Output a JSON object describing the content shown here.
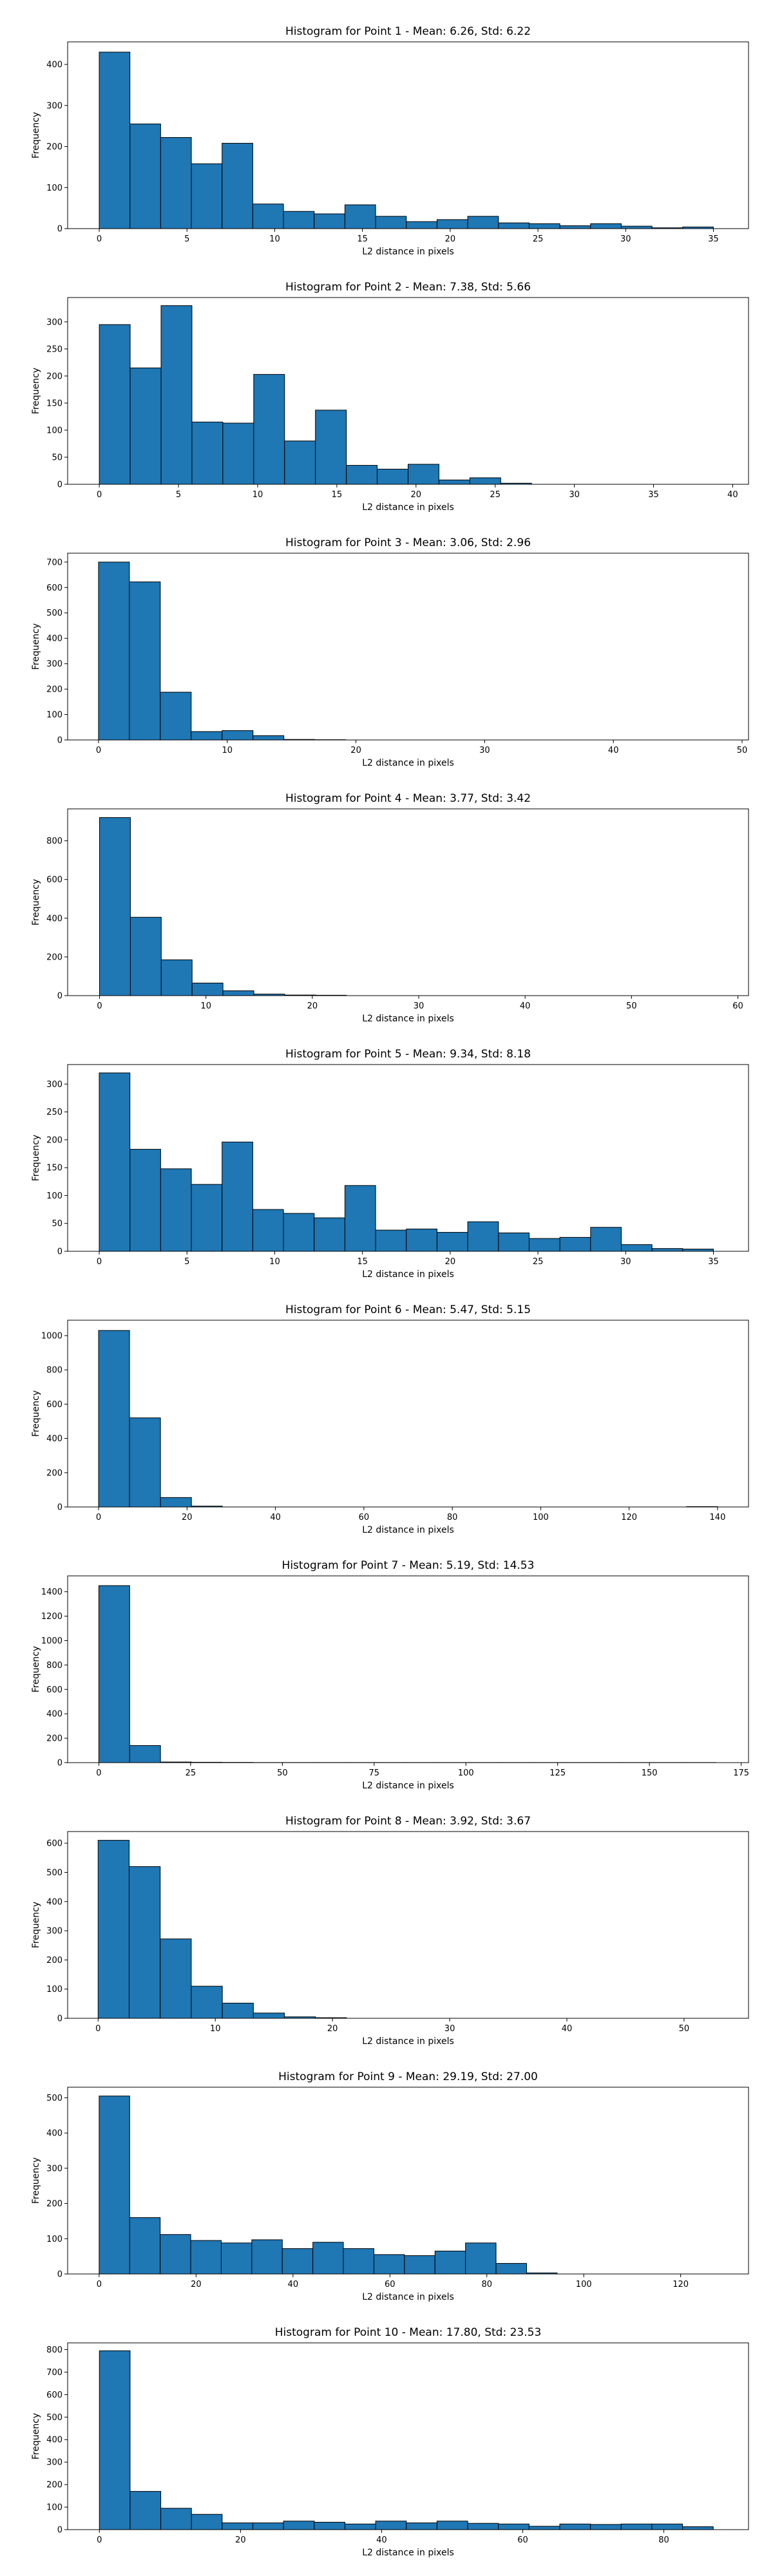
{
  "chart_data": [
    {
      "type": "bar",
      "title": "Histogram for Point 1 - Mean: 6.26, Std: 6.22",
      "xlabel": "L2 distance in pixels",
      "ylabel": "Frequency",
      "xlim": [
        -1.8,
        37.0
      ],
      "ylim": [
        0,
        455
      ],
      "xticks": [
        0,
        5,
        10,
        15,
        20,
        25,
        30,
        35
      ],
      "yticks": [
        0,
        100,
        200,
        300,
        400
      ],
      "bin_start": 0.0,
      "bin_width": 1.75,
      "values": [
        430,
        255,
        222,
        158,
        208,
        60,
        42,
        36,
        58,
        30,
        17,
        22,
        30,
        14,
        12,
        7,
        12,
        6,
        2,
        4
      ],
      "color": "#1f77b4"
    },
    {
      "type": "bar",
      "title": "Histogram for Point 2 - Mean: 7.38, Std: 5.66",
      "xlabel": "L2 distance in pixels",
      "ylabel": "Frequency",
      "xlim": [
        -2.0,
        41.0
      ],
      "ylim": [
        0,
        345
      ],
      "xticks": [
        0,
        5,
        10,
        15,
        20,
        25,
        30,
        35,
        40
      ],
      "yticks": [
        0,
        50,
        100,
        150,
        200,
        250,
        300
      ],
      "bin_start": 0.0,
      "bin_width": 1.95,
      "values": [
        295,
        215,
        330,
        115,
        113,
        203,
        80,
        137,
        35,
        28,
        37,
        8,
        12,
        2,
        0,
        0,
        0,
        0,
        0,
        0
      ],
      "color": "#1f77b4"
    },
    {
      "type": "bar",
      "title": "Histogram for Point 3 - Mean: 3.06, Std: 2.96",
      "xlabel": "L2 distance in pixels",
      "ylabel": "Frequency",
      "xlim": [
        -2.4,
        50.5
      ],
      "ylim": [
        0,
        735
      ],
      "xticks": [
        0,
        10,
        20,
        30,
        40,
        50
      ],
      "yticks": [
        0,
        100,
        200,
        300,
        400,
        500,
        600,
        700
      ],
      "bin_start": 0.0,
      "bin_width": 2.4,
      "values": [
        700,
        622,
        188,
        33,
        37,
        17,
        2,
        1,
        0,
        0,
        0,
        0,
        0,
        0,
        0,
        0,
        0,
        0,
        0,
        0
      ],
      "color": "#1f77b4"
    },
    {
      "type": "bar",
      "title": "Histogram for Point 4 - Mean: 3.77, Std: 3.42",
      "xlabel": "L2 distance in pixels",
      "ylabel": "Frequency",
      "xlim": [
        -3.0,
        61.0
      ],
      "ylim": [
        0,
        965
      ],
      "xticks": [
        0,
        10,
        20,
        30,
        40,
        50,
        60
      ],
      "yticks": [
        0,
        200,
        400,
        600,
        800
      ],
      "bin_start": 0.0,
      "bin_width": 2.9,
      "values": [
        920,
        405,
        185,
        65,
        25,
        8,
        3,
        2,
        0,
        0,
        0,
        0,
        0,
        0,
        0,
        0,
        0,
        0,
        0,
        0
      ],
      "color": "#1f77b4"
    },
    {
      "type": "bar",
      "title": "Histogram for Point 5 - Mean: 9.34, Std: 8.18",
      "xlabel": "L2 distance in pixels",
      "ylabel": "Frequency",
      "xlim": [
        -1.8,
        37.0
      ],
      "ylim": [
        0,
        335
      ],
      "xticks": [
        0,
        5,
        10,
        15,
        20,
        25,
        30,
        35
      ],
      "yticks": [
        0,
        50,
        100,
        150,
        200,
        250,
        300
      ],
      "bin_start": 0.0,
      "bin_width": 1.75,
      "values": [
        320,
        183,
        148,
        120,
        196,
        75,
        68,
        60,
        118,
        38,
        40,
        34,
        53,
        33,
        23,
        25,
        43,
        12,
        5,
        4
      ],
      "color": "#1f77b4"
    },
    {
      "type": "bar",
      "title": "Histogram for Point 6 - Mean: 5.47, Std: 5.15",
      "xlabel": "L2 distance in pixels",
      "ylabel": "Frequency",
      "xlim": [
        -7.0,
        147.0
      ],
      "ylim": [
        0,
        1090
      ],
      "xticks": [
        0,
        20,
        40,
        60,
        80,
        100,
        120,
        140
      ],
      "yticks": [
        0,
        200,
        400,
        600,
        800,
        1000
      ],
      "bin_start": 0.0,
      "bin_width": 7.0,
      "values": [
        1030,
        520,
        55,
        5,
        0,
        0,
        0,
        0,
        0,
        0,
        0,
        0,
        0,
        0,
        0,
        0,
        0,
        0,
        0,
        2
      ],
      "color": "#1f77b4"
    },
    {
      "type": "bar",
      "title": "Histogram for Point 7 - Mean: 5.19, Std: 14.53",
      "xlabel": "L2 distance in pixels",
      "ylabel": "Frequency",
      "xlim": [
        -8.5,
        177.0
      ],
      "ylim": [
        0,
        1530
      ],
      "xticks": [
        0,
        25,
        50,
        75,
        100,
        125,
        150,
        175
      ],
      "yticks": [
        0,
        200,
        400,
        600,
        800,
        1000,
        1200,
        1400
      ],
      "bin_start": 0.0,
      "bin_width": 8.4,
      "values": [
        1450,
        140,
        5,
        3,
        2,
        1,
        1,
        1,
        1,
        1,
        1,
        1,
        1,
        1,
        1,
        1,
        1,
        1,
        1,
        1
      ],
      "color": "#1f77b4"
    },
    {
      "type": "bar",
      "title": "Histogram for Point 8 - Mean: 3.92, Std: 3.67",
      "xlabel": "L2 distance in pixels",
      "ylabel": "Frequency",
      "xlim": [
        -2.6,
        55.5
      ],
      "ylim": [
        0,
        640
      ],
      "xticks": [
        0,
        10,
        20,
        30,
        40,
        50
      ],
      "yticks": [
        0,
        100,
        200,
        300,
        400,
        500,
        600
      ],
      "bin_start": 0.0,
      "bin_width": 2.65,
      "values": [
        610,
        520,
        272,
        110,
        52,
        18,
        5,
        2,
        0,
        0,
        0,
        0,
        0,
        0,
        0,
        0,
        0,
        0,
        0,
        0
      ],
      "color": "#1f77b4"
    },
    {
      "type": "bar",
      "title": "Histogram for Point 9 - Mean: 29.19, Std: 27.00",
      "xlabel": "L2 distance in pixels",
      "ylabel": "Frequency",
      "xlim": [
        -6.5,
        134.0
      ],
      "ylim": [
        0,
        530
      ],
      "xticks": [
        0,
        20,
        40,
        60,
        80,
        100,
        120
      ],
      "yticks": [
        0,
        100,
        200,
        300,
        400,
        500
      ],
      "bin_start": 0.0,
      "bin_width": 6.3,
      "values": [
        505,
        160,
        112,
        95,
        88,
        97,
        72,
        90,
        72,
        55,
        52,
        65,
        88,
        30,
        3,
        0,
        0,
        0,
        0,
        0
      ],
      "color": "#1f77b4"
    },
    {
      "type": "bar",
      "title": "Histogram for Point 10 - Mean: 17.80, Std: 23.53",
      "xlabel": "L2 distance in pixels",
      "ylabel": "Frequency",
      "xlim": [
        -4.5,
        92.0
      ],
      "ylim": [
        0,
        830
      ],
      "xticks": [
        0,
        20,
        40,
        60,
        80
      ],
      "yticks": [
        0,
        100,
        200,
        300,
        400,
        500,
        600,
        700,
        800
      ],
      "bin_start": 0.0,
      "bin_width": 4.35,
      "values": [
        795,
        170,
        95,
        68,
        30,
        30,
        38,
        33,
        25,
        38,
        30,
        38,
        28,
        25,
        15,
        25,
        23,
        25,
        25,
        13
      ],
      "color": "#1f77b4"
    }
  ]
}
